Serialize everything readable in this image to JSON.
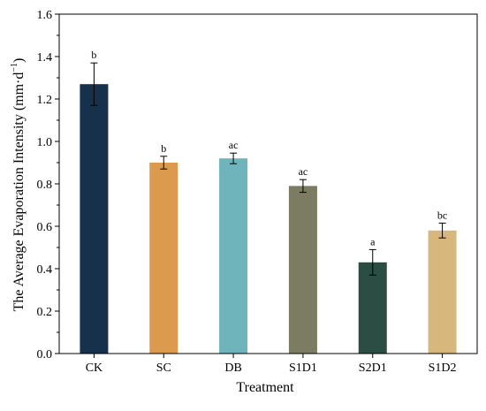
{
  "chart_data": {
    "type": "bar",
    "title": "",
    "xlabel": "Treatment",
    "ylabel": "The Average Evaporation Intensity (mm·d",
    "ylabel_superscript": "−1",
    "ylabel_suffix": ")",
    "ylim": [
      0.0,
      1.6
    ],
    "yticks": [
      "0.0",
      "0.2",
      "0.4",
      "0.6",
      "0.8",
      "1.0",
      "1.2",
      "1.4",
      "1.6"
    ],
    "grid": false,
    "categories": [
      "CK",
      "SC",
      "DB",
      "S1D1",
      "S2D1",
      "S1D2"
    ],
    "values": [
      1.27,
      0.9,
      0.92,
      0.79,
      0.43,
      0.58
    ],
    "errors": [
      0.1,
      0.03,
      0.025,
      0.03,
      0.06,
      0.035
    ],
    "significance_labels": [
      "b",
      "b",
      "ac",
      "ac",
      "a",
      "bc"
    ],
    "colors": [
      "#17304b",
      "#dc9a4e",
      "#6fb3bb",
      "#7c7c63",
      "#2b4d43",
      "#d7b77b"
    ]
  }
}
